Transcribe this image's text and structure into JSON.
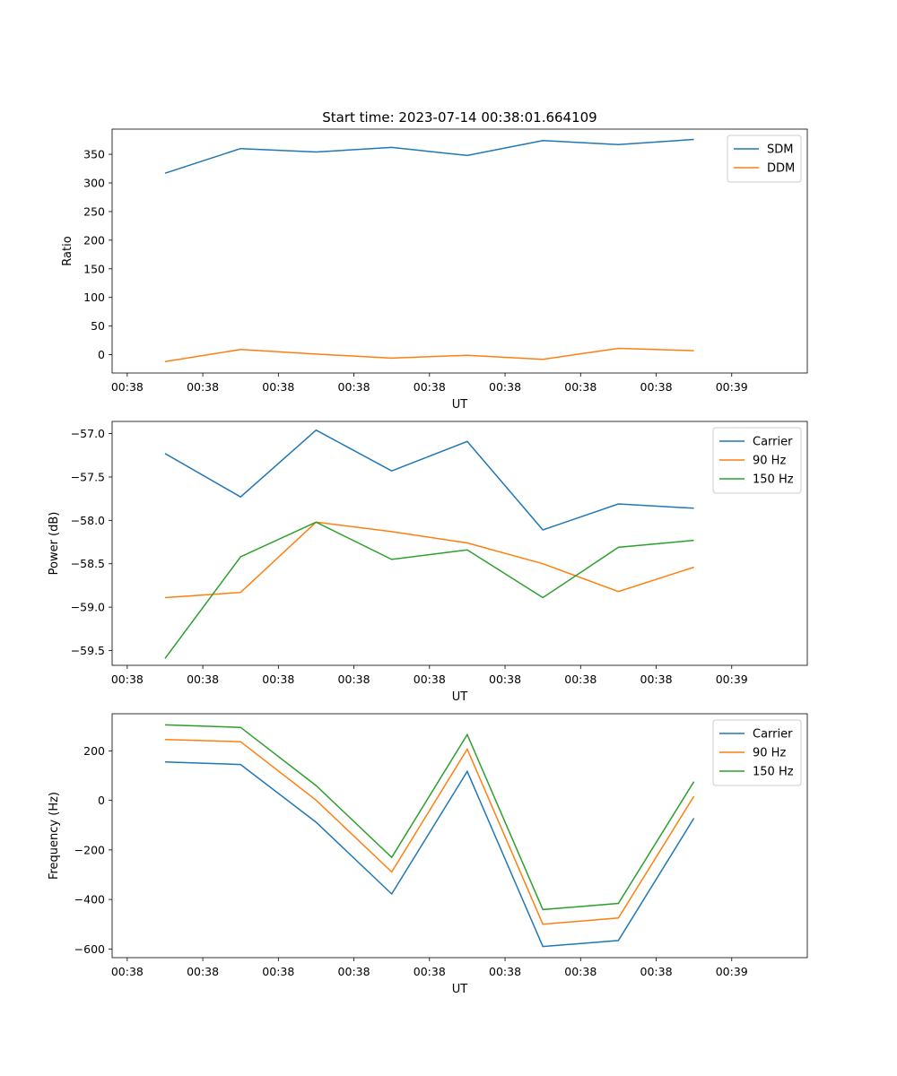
{
  "figure_title": "Start time: 2023-07-14 00:38:01.664109",
  "chart_data": [
    {
      "type": "line",
      "title": "Start time: 2023-07-14 00:38:01.664109",
      "xlabel": "UT",
      "ylabel": "Ratio",
      "x_positions": [
        0,
        1,
        2,
        3,
        4,
        5,
        6,
        7,
        8
      ],
      "x_tick_labels": [
        "00:38",
        "00:38",
        "00:38",
        "00:38",
        "00:38",
        "00:38",
        "00:38",
        "00:38",
        "00:39"
      ],
      "xlim": [
        -0.2,
        9.0
      ],
      "x": [
        0.5,
        1.5,
        2.5,
        3.5,
        4.5,
        5.5,
        6.5,
        7.5
      ],
      "ylim": [
        -32,
        394
      ],
      "y_ticks": [
        0,
        50,
        100,
        150,
        200,
        250,
        300,
        350
      ],
      "y_tick_labels": [
        "0",
        "50",
        "100",
        "150",
        "200",
        "250",
        "300",
        "350"
      ],
      "legend_position": "top-right",
      "series": [
        {
          "name": "SDM",
          "color": "#1f77b4",
          "values": [
            317,
            360,
            354,
            362,
            348,
            374,
            367,
            376
          ]
        },
        {
          "name": "DDM",
          "color": "#ff7f0e",
          "values": [
            -12,
            9,
            1,
            -6,
            -1,
            -8,
            11,
            7
          ]
        }
      ]
    },
    {
      "type": "line",
      "title": "",
      "xlabel": "UT",
      "ylabel": "Power (dB)",
      "x_positions": [
        0,
        1,
        2,
        3,
        4,
        5,
        6,
        7,
        8
      ],
      "x_tick_labels": [
        "00:38",
        "00:38",
        "00:38",
        "00:38",
        "00:38",
        "00:38",
        "00:38",
        "00:38",
        "00:39"
      ],
      "xlim": [
        -0.2,
        9.0
      ],
      "x": [
        0.5,
        1.5,
        2.5,
        3.5,
        4.5,
        5.5,
        6.5,
        7.5
      ],
      "ylim": [
        -59.67,
        -56.86
      ],
      "y_ticks": [
        -59.5,
        -59.0,
        -58.5,
        -58.0,
        -57.5,
        -57.0
      ],
      "y_tick_labels": [
        "−59.5",
        "−59.0",
        "−58.5",
        "−58.0",
        "−57.5",
        "−57.0"
      ],
      "legend_position": "top-right",
      "series": [
        {
          "name": "Carrier",
          "color": "#1f77b4",
          "values": [
            -57.23,
            -57.73,
            -56.96,
            -57.43,
            -57.09,
            -58.11,
            -57.81,
            -57.86
          ]
        },
        {
          "name": "90 Hz",
          "color": "#ff7f0e",
          "values": [
            -58.89,
            -58.83,
            -58.02,
            -58.13,
            -58.26,
            -58.5,
            -58.82,
            -58.54
          ]
        },
        {
          "name": "150 Hz",
          "color": "#2ca02c",
          "values": [
            -59.59,
            -58.42,
            -58.02,
            -58.45,
            -58.34,
            -58.89,
            -58.31,
            -58.23
          ]
        }
      ]
    },
    {
      "type": "line",
      "title": "",
      "xlabel": "UT",
      "ylabel": "Frequency (Hz)",
      "x_positions": [
        0,
        1,
        2,
        3,
        4,
        5,
        6,
        7,
        8
      ],
      "x_tick_labels": [
        "00:38",
        "00:38",
        "00:38",
        "00:38",
        "00:38",
        "00:38",
        "00:38",
        "00:38",
        "00:39"
      ],
      "xlim": [
        -0.2,
        9.0
      ],
      "x": [
        0.5,
        1.5,
        2.5,
        3.5,
        4.5,
        5.5,
        6.5,
        7.5
      ],
      "ylim": [
        -635,
        350
      ],
      "y_ticks": [
        -600,
        -400,
        -200,
        0,
        200
      ],
      "y_tick_labels": [
        "−600",
        "−400",
        "−200",
        "0",
        "200"
      ],
      "legend_position": "top-right",
      "series": [
        {
          "name": "Carrier",
          "color": "#1f77b4",
          "values": [
            155,
            145,
            -88,
            -378,
            117,
            -590,
            -566,
            -72
          ]
        },
        {
          "name": "90 Hz",
          "color": "#ff7f0e",
          "values": [
            246,
            237,
            1,
            -289,
            207,
            -500,
            -475,
            17
          ]
        },
        {
          "name": "150 Hz",
          "color": "#2ca02c",
          "values": [
            305,
            295,
            60,
            -230,
            266,
            -441,
            -416,
            76
          ]
        }
      ]
    }
  ]
}
